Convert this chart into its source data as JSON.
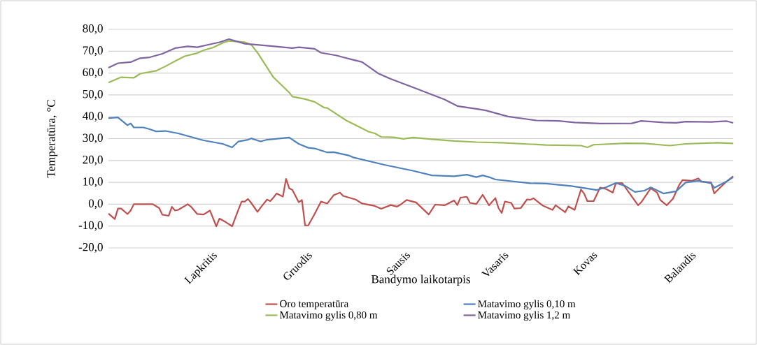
{
  "chart_data": {
    "type": "line",
    "xlabel": "Bandymo laikotarpis",
    "ylabel": "Temperatūra, °C",
    "categories": [
      null,
      null,
      null,
      null,
      null,
      null,
      null,
      null,
      null,
      null,
      null,
      null,
      null,
      null,
      null,
      null,
      null,
      null,
      null,
      null,
      null,
      null,
      null,
      null,
      null,
      null,
      null,
      null,
      null,
      null,
      null,
      null,
      null,
      "Lapkritis",
      null,
      null,
      null,
      null,
      null,
      null,
      null,
      null,
      null,
      null,
      null,
      null,
      null,
      null,
      null,
      null,
      null,
      null,
      null,
      null,
      null,
      null,
      null,
      null,
      null,
      null,
      null,
      null,
      null,
      "Gruodis",
      null,
      null,
      null,
      null,
      null,
      null,
      null,
      null,
      null,
      null,
      null,
      null,
      null,
      null,
      null,
      null,
      null,
      null,
      null,
      null,
      null,
      null,
      null,
      null,
      null,
      null,
      null,
      null,
      null,
      null,
      "Sausis",
      null,
      null,
      null,
      null,
      null,
      null,
      null,
      null,
      null,
      null,
      null,
      null,
      null,
      null,
      null,
      null,
      null,
      null,
      null,
      null,
      null,
      null,
      null,
      null,
      null,
      null,
      null,
      null,
      null,
      null,
      "Vasaris",
      null,
      null,
      null,
      null,
      null,
      null,
      null,
      null,
      null,
      null,
      null,
      null,
      null,
      null,
      null,
      null,
      null,
      null,
      null,
      null,
      null,
      null,
      null,
      null,
      null,
      null,
      null,
      "Kovas",
      null,
      null,
      null,
      null,
      null,
      null,
      null,
      null,
      null,
      null,
      null,
      null,
      null,
      null,
      null,
      null,
      null,
      null,
      null,
      null,
      null,
      null,
      null,
      null,
      null,
      null,
      null,
      null,
      null,
      null,
      "Balandis",
      null,
      null,
      null,
      null,
      null,
      null,
      null,
      null,
      null,
      null,
      null,
      null,
      null
    ],
    "ylim": [
      -20,
      80
    ],
    "yticks": [
      {
        "value": -20,
        "label": "-20,0"
      },
      {
        "value": -10,
        "label": "-10,0"
      },
      {
        "value": 0,
        "label": "0,0"
      },
      {
        "value": 10,
        "label": "10,0"
      },
      {
        "value": 20,
        "label": "20,0"
      },
      {
        "value": 30,
        "label": "30,0"
      },
      {
        "value": 40,
        "label": "40,0"
      },
      {
        "value": 50,
        "label": "50,0"
      },
      {
        "value": 60,
        "label": "60,0"
      },
      {
        "value": 70,
        "label": "70,0"
      },
      {
        "value": 80,
        "label": "80,0"
      }
    ],
    "grid": "y",
    "legend": "bottom",
    "series": [
      {
        "name": "Oro temperatūra",
        "color": "#c0504d",
        "values": [
          -4.3,
          null,
          -6.8,
          -2.0,
          -2.0,
          null,
          -4.5,
          -2.9,
          0.0,
          null,
          null,
          null,
          null,
          null,
          0.0,
          null,
          -1.8,
          -4.8,
          null,
          -5.3,
          -1.2,
          -2.9,
          -2.6,
          null,
          null,
          0.0,
          -1.1,
          null,
          -4.5,
          null,
          -4.7,
          null,
          -2.9,
          null,
          -10.1,
          -6.6,
          null,
          -8.2,
          null,
          -10.1,
          null,
          -2.4,
          1.2,
          1.2,
          2.4,
          0.6,
          null,
          -3.5,
          -1.5,
          null,
          2.1,
          1.4,
          3.0,
          4.9,
          null,
          3.5,
          11.6,
          7.3,
          6.5,
          null,
          0.9,
          1.9,
          -9.7,
          -9.7,
          null,
          -4.5,
          null,
          1.2,
          null,
          0.3,
          null,
          4.1,
          null,
          5.3,
          3.8,
          null,
          null,
          2.5,
          2.1,
          null,
          0.3,
          null,
          null,
          null,
          -0.8,
          null,
          -2.1,
          null,
          null,
          -0.4,
          null,
          -1.1,
          -0.3,
          null,
          1.9,
          null,
          null,
          0.8,
          null,
          null,
          null,
          -4.7,
          null,
          -0.2,
          null,
          null,
          -0.5,
          null,
          null,
          1.7,
          -0.4,
          3.0,
          null,
          3.4,
          0.6,
          null,
          0.1,
          null,
          4.3,
          null,
          -0.5,
          null,
          2.8,
          -1.8,
          -4.0,
          1.2,
          null,
          0.6,
          -2.0,
          null,
          -1.8,
          null,
          2.2,
          2.0,
          2.7,
          null,
          null,
          -0.7,
          null,
          null,
          -2.6,
          -0.5,
          null,
          null,
          -3.7,
          -1.0,
          null,
          -2.6,
          null,
          6.7,
          4.8,
          1.4,
          null,
          1.4,
          null,
          7.6,
          null,
          6.9,
          null,
          5.3,
          9.6,
          null,
          9.7,
          null,
          null,
          null,
          null,
          -0.5,
          0.9,
          null,
          null,
          7.3,
          null,
          5.3,
          1.9,
          null,
          -0.5,
          null,
          2.5,
          null,
          8.9,
          11.0,
          null,
          null,
          10.7,
          null,
          11.8,
          10.3,
          null,
          null,
          10.0,
          4.9,
          null,
          7.8,
          null,
          10.5,
          null,
          12.8
        ]
      },
      {
        "name": "Matavimo gylis 0,10 m",
        "color": "#4f81bd",
        "values": [
          39.4,
          null,
          null,
          39.7,
          null,
          null,
          36.1,
          37.0,
          35.1,
          null,
          null,
          35.1,
          null,
          34.3,
          null,
          33.3,
          null,
          null,
          33.5,
          null,
          null,
          null,
          32.4,
          null,
          null,
          null,
          30.8,
          null,
          null,
          null,
          29.2,
          null,
          null,
          null,
          null,
          null,
          27.6,
          null,
          null,
          26.0,
          null,
          28.7,
          null,
          null,
          29.5,
          30.1,
          null,
          null,
          28.7,
          null,
          29.5,
          null,
          null,
          null,
          null,
          null,
          null,
          30.5,
          null,
          null,
          27.6,
          null,
          null,
          25.8,
          null,
          25.5,
          null,
          null,
          null,
          23.7,
          null,
          23.8,
          null,
          null,
          null,
          null,
          22.2,
          21.5,
          null,
          null,
          null,
          null,
          null,
          null,
          null,
          null,
          null,
          18.0,
          null,
          null,
          null,
          null,
          null,
          null,
          null,
          null,
          15.3,
          null,
          null,
          null,
          null,
          null,
          13.2,
          null,
          null,
          null,
          null,
          null,
          null,
          12.8,
          null,
          null,
          null,
          13.5,
          null,
          null,
          12.4,
          null,
          13.2,
          null,
          12.4,
          null,
          11.3,
          null,
          null,
          null,
          null,
          null,
          null,
          null,
          null,
          null,
          null,
          9.6,
          null,
          null,
          null,
          null,
          9.4,
          null,
          null,
          null,
          null,
          null,
          null,
          null,
          8.3,
          null,
          null,
          null,
          null,
          null,
          null,
          null,
          6.5,
          null,
          null,
          7.8,
          null,
          null,
          9.7,
          null,
          null,
          8.3,
          null,
          null,
          5.6,
          null,
          null,
          6.2,
          null,
          7.7,
          null,
          null,
          null,
          4.9,
          null,
          null,
          null,
          5.9,
          null,
          null,
          9.9,
          null,
          null,
          null,
          10.7,
          null,
          null,
          null,
          9.6,
          7.5,
          null,
          null,
          null,
          10.5,
          null,
          12.4
        ]
      },
      {
        "name": "Matavimo gylis 0,80 m",
        "color": "#9bbb59",
        "values": [
          55.6,
          null,
          null,
          null,
          58.1,
          null,
          null,
          null,
          57.8,
          null,
          59.7,
          null,
          null,
          null,
          null,
          61.0,
          null,
          null,
          63.1,
          null,
          null,
          null,
          null,
          null,
          67.7,
          null,
          null,
          null,
          69.1,
          null,
          70.4,
          null,
          null,
          71.7,
          null,
          null,
          73.8,
          null,
          74.7,
          null,
          null,
          null,
          null,
          74.1,
          null,
          73.0,
          null,
          69.3,
          null,
          null,
          null,
          null,
          58.1,
          null,
          null,
          null,
          null,
          51.1,
          49.2,
          null,
          null,
          null,
          48.1,
          null,
          null,
          46.8,
          null,
          null,
          44.2,
          44.0,
          null,
          null,
          null,
          null,
          null,
          38.3,
          null,
          null,
          null,
          null,
          null,
          null,
          33.2,
          null,
          32.4,
          null,
          30.8,
          null,
          null,
          null,
          30.6,
          null,
          null,
          29.9,
          null,
          null,
          30.5,
          null,
          null,
          null,
          null,
          null,
          29.7,
          null,
          null,
          null,
          null,
          null,
          null,
          28.9,
          null,
          null,
          null,
          null,
          null,
          null,
          28.4,
          null,
          null,
          null,
          null,
          null,
          null,
          null,
          28.1,
          null,
          null,
          null,
          null,
          null,
          null,
          27.6,
          null,
          null,
          null,
          null,
          null,
          null,
          27.1,
          null,
          null,
          null,
          null,
          null,
          null,
          null,
          null,
          null,
          null,
          26.8,
          null,
          26.0,
          null,
          27.2,
          null,
          null,
          null,
          null,
          null,
          null,
          null,
          null,
          null,
          27.9,
          null,
          null,
          null,
          null,
          null,
          27.8,
          null,
          null,
          null,
          null,
          null,
          null,
          null,
          26.8,
          null,
          null,
          null,
          null,
          27.6,
          null,
          null,
          null,
          null,
          null,
          null,
          null,
          null,
          null,
          28.1,
          null,
          null,
          null,
          null,
          27.8
        ]
      },
      {
        "name": "Matavimo gylis 1,2 m",
        "color": "#8064a2",
        "values": [
          62.4,
          null,
          null,
          64.5,
          null,
          null,
          null,
          65.0,
          null,
          null,
          66.8,
          null,
          null,
          67.2,
          null,
          null,
          null,
          68.8,
          null,
          null,
          null,
          71.4,
          null,
          null,
          null,
          72.2,
          null,
          null,
          71.8,
          null,
          null,
          72.8,
          null,
          null,
          null,
          74.1,
          null,
          null,
          75.5,
          null,
          null,
          null,
          null,
          73.4,
          null,
          null,
          null,
          null,
          null,
          null,
          72.5,
          null,
          null,
          null,
          null,
          null,
          null,
          null,
          71.4,
          null,
          71.8,
          null,
          null,
          null,
          null,
          71.1,
          null,
          69.3,
          null,
          null,
          null,
          null,
          68.0,
          null,
          67.2,
          null,
          null,
          null,
          null,
          null,
          65.0,
          null,
          null,
          null,
          null,
          59.9,
          null,
          null,
          null,
          57.3,
          null,
          null,
          null,
          null,
          null,
          null,
          53.5,
          null,
          null,
          null,
          null,
          null,
          50.1,
          null,
          null,
          null,
          47.9,
          null,
          null,
          null,
          44.9,
          null,
          null,
          null,
          null,
          null,
          43.6,
          null,
          null,
          42.9,
          null,
          null,
          null,
          null,
          null,
          null,
          40.1,
          null,
          null,
          null,
          null,
          39.1,
          null,
          null,
          null,
          38.3,
          null,
          null,
          null,
          null,
          null,
          null,
          38.1,
          null,
          null,
          null,
          null,
          37.4,
          null,
          null,
          null,
          null,
          null,
          null,
          null,
          36.9,
          null,
          null,
          null,
          null,
          null,
          null,
          null,
          null,
          null,
          37.0,
          null,
          null,
          38.1,
          null,
          null,
          null,
          null,
          null,
          null,
          37.4,
          null,
          null,
          null,
          37.2,
          null,
          null,
          37.8,
          null,
          null,
          null,
          null,
          null,
          null,
          null,
          37.6,
          null,
          null,
          null,
          null,
          38.0,
          null,
          37.2
        ]
      }
    ]
  }
}
